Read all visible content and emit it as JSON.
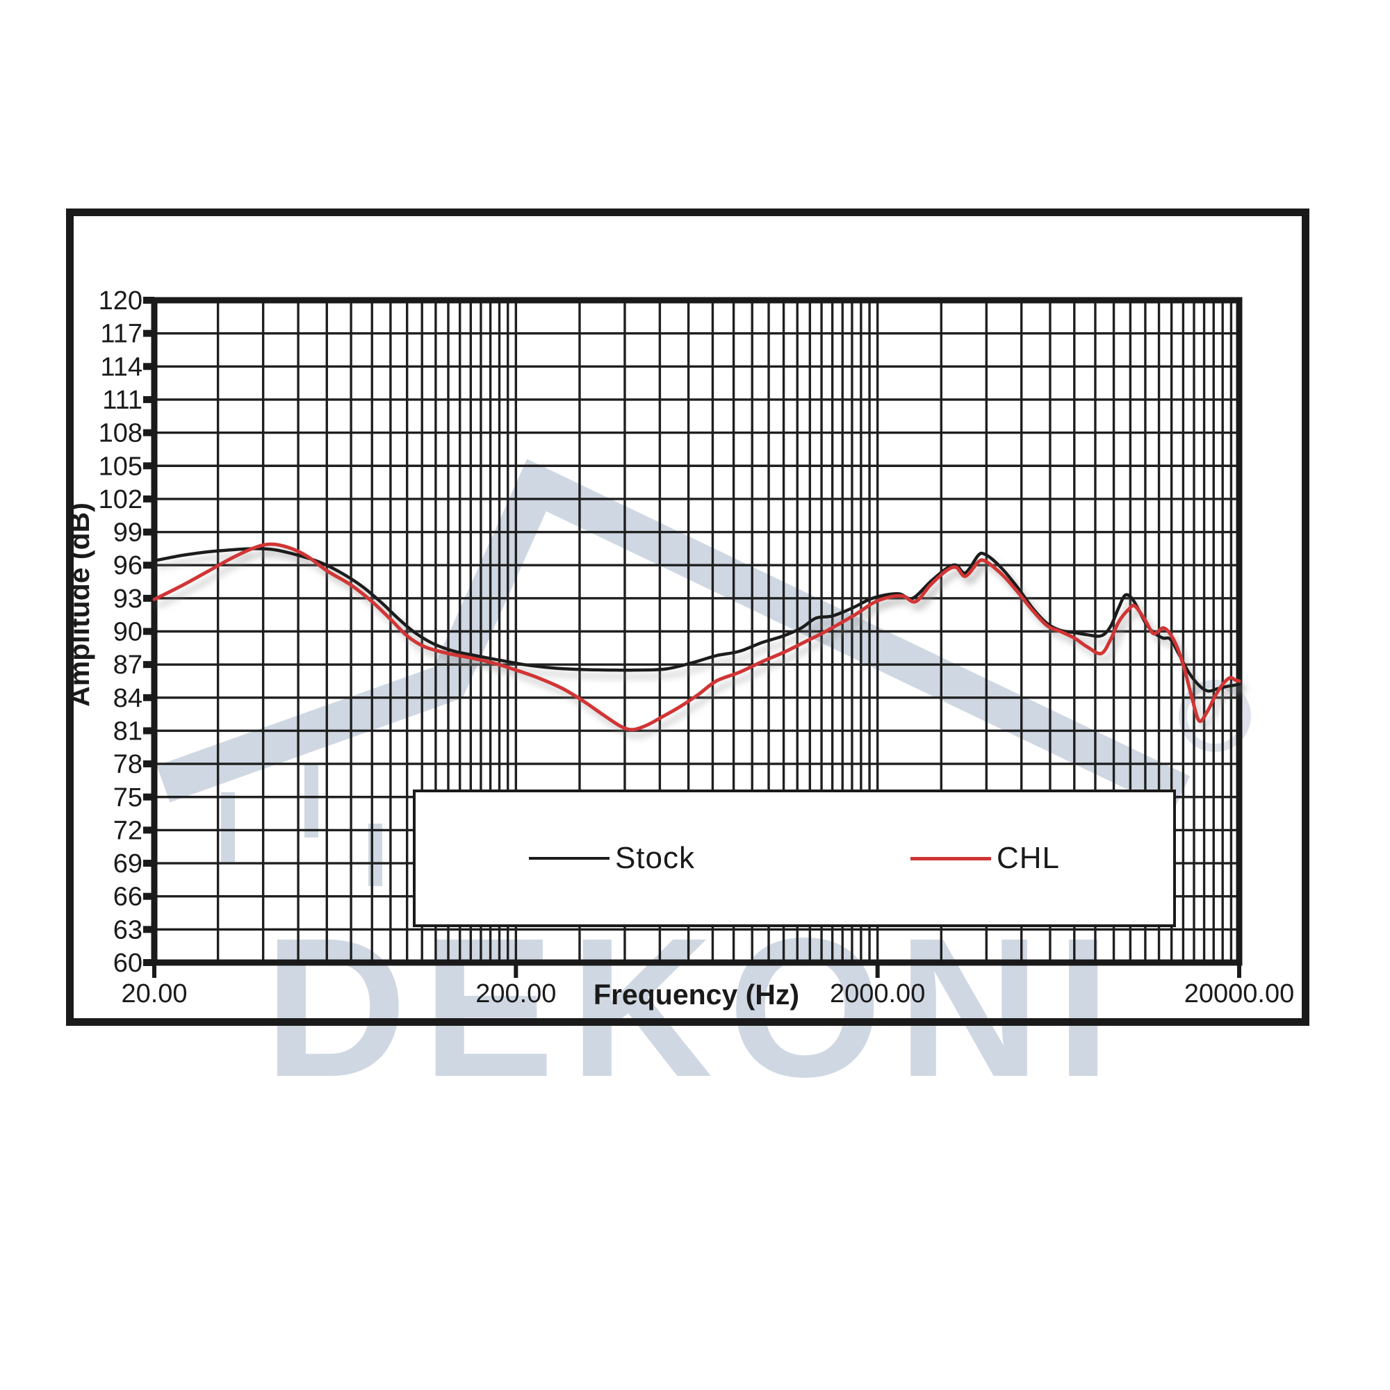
{
  "watermark": {
    "text": "DEKONI",
    "color": "#cfd7e2"
  },
  "colors": {
    "grid": "#1f1f1f",
    "frame": "#1a1a1a",
    "stock": "#1b1b1b",
    "chl": "#d13434",
    "watermark": "#cfd7e2"
  },
  "legend": {
    "items": [
      {
        "label": "Stock",
        "color": "#1b1b1b",
        "thickness": 4
      },
      {
        "label": "CHL",
        "color": "#d13434",
        "thickness": 5
      }
    ]
  },
  "chart_data": {
    "type": "line",
    "title": "",
    "xlabel": "Frequency (Hz)",
    "ylabel": "Amplitude (dB)",
    "x_scale": "log",
    "xlim": [
      20,
      20000
    ],
    "ylim": [
      60,
      120
    ],
    "y_step": 3,
    "grid": "on",
    "legend_position": "bottom-center-box",
    "x_ticks": [
      {
        "value": 20,
        "label": "20.00"
      },
      {
        "value": 200,
        "label": "200.00"
      },
      {
        "value": 2000,
        "label": "2000.00"
      },
      {
        "value": 20000,
        "label": "20000.00"
      }
    ],
    "y_ticks": [
      120,
      117,
      114,
      111,
      108,
      105,
      102,
      99,
      96,
      93,
      90,
      87,
      84,
      81,
      78,
      75,
      72,
      69,
      66,
      63,
      60
    ],
    "series": [
      {
        "name": "Stock",
        "points": [
          [
            20,
            96.4
          ],
          [
            24,
            96.9
          ],
          [
            28,
            97.2
          ],
          [
            33,
            97.4
          ],
          [
            38,
            97.5
          ],
          [
            43,
            97.4
          ],
          [
            50,
            96.9
          ],
          [
            57,
            96.3
          ],
          [
            65,
            95.4
          ],
          [
            75,
            94.1
          ],
          [
            85,
            92.6
          ],
          [
            95,
            91.1
          ],
          [
            105,
            89.9
          ],
          [
            118,
            88.9
          ],
          [
            135,
            88.2
          ],
          [
            155,
            87.8
          ],
          [
            180,
            87.4
          ],
          [
            210,
            87.0
          ],
          [
            250,
            86.7
          ],
          [
            300,
            86.55
          ],
          [
            360,
            86.5
          ],
          [
            430,
            86.5
          ],
          [
            520,
            86.6
          ],
          [
            620,
            87.2
          ],
          [
            716,
            87.8
          ],
          [
            830,
            88.2
          ],
          [
            960,
            89.0
          ],
          [
            1100,
            89.6
          ],
          [
            1230,
            90.3
          ],
          [
            1350,
            91.2
          ],
          [
            1500,
            91.4
          ],
          [
            1700,
            92.1
          ],
          [
            1900,
            92.9
          ],
          [
            2100,
            93.3
          ],
          [
            2300,
            93.4
          ],
          [
            2500,
            93.0
          ],
          [
            2800,
            94.5
          ],
          [
            3100,
            95.7
          ],
          [
            3300,
            96.0
          ],
          [
            3500,
            95.3
          ],
          [
            3800,
            96.9
          ],
          [
            3950,
            97.0
          ],
          [
            4200,
            96.4
          ],
          [
            4500,
            95.4
          ],
          [
            4900,
            93.9
          ],
          [
            5400,
            92.0
          ],
          [
            5900,
            90.7
          ],
          [
            6400,
            90.1
          ],
          [
            7000,
            89.9
          ],
          [
            7600,
            89.7
          ],
          [
            8300,
            89.6
          ],
          [
            8800,
            90.4
          ],
          [
            9300,
            92.2
          ],
          [
            9700,
            93.3
          ],
          [
            10200,
            92.8
          ],
          [
            11000,
            90.8
          ],
          [
            11600,
            89.9
          ],
          [
            12300,
            89.4
          ],
          [
            12900,
            89.3
          ],
          [
            13600,
            88.0
          ],
          [
            14500,
            86.3
          ],
          [
            15500,
            85.1
          ],
          [
            16400,
            84.6
          ],
          [
            17400,
            84.8
          ],
          [
            18400,
            85.0
          ],
          [
            19200,
            85.1
          ],
          [
            20000,
            85.2
          ]
        ]
      },
      {
        "name": "CHL",
        "points": [
          [
            20,
            92.9
          ],
          [
            24,
            94.2
          ],
          [
            28,
            95.4
          ],
          [
            33,
            96.7
          ],
          [
            38,
            97.6
          ],
          [
            42,
            97.9
          ],
          [
            47,
            97.6
          ],
          [
            53,
            96.8
          ],
          [
            60,
            95.5
          ],
          [
            70,
            94.2
          ],
          [
            80,
            92.7
          ],
          [
            90,
            91.1
          ],
          [
            100,
            89.6
          ],
          [
            112,
            88.6
          ],
          [
            130,
            88.0
          ],
          [
            150,
            87.6
          ],
          [
            175,
            87.1
          ],
          [
            200,
            86.5
          ],
          [
            230,
            85.8
          ],
          [
            270,
            84.8
          ],
          [
            310,
            83.6
          ],
          [
            350,
            82.4
          ],
          [
            390,
            81.4
          ],
          [
            420,
            81.1
          ],
          [
            460,
            81.5
          ],
          [
            510,
            82.3
          ],
          [
            570,
            83.2
          ],
          [
            640,
            84.3
          ],
          [
            716,
            85.5
          ],
          [
            830,
            86.3
          ],
          [
            950,
            87.2
          ],
          [
            1100,
            88.1
          ],
          [
            1250,
            89.0
          ],
          [
            1400,
            89.8
          ],
          [
            1550,
            90.6
          ],
          [
            1750,
            91.6
          ],
          [
            1950,
            92.6
          ],
          [
            2150,
            93.1
          ],
          [
            2350,
            93.2
          ],
          [
            2550,
            92.7
          ],
          [
            2800,
            94.2
          ],
          [
            3100,
            95.5
          ],
          [
            3300,
            95.8
          ],
          [
            3500,
            95.0
          ],
          [
            3800,
            96.3
          ],
          [
            3950,
            96.4
          ],
          [
            4200,
            95.8
          ],
          [
            4500,
            94.9
          ],
          [
            4900,
            93.5
          ],
          [
            5400,
            91.8
          ],
          [
            5900,
            90.5
          ],
          [
            6400,
            90.0
          ],
          [
            7000,
            89.4
          ],
          [
            7600,
            88.6
          ],
          [
            8300,
            88.0
          ],
          [
            8800,
            89.2
          ],
          [
            9300,
            90.9
          ],
          [
            9900,
            92.0
          ],
          [
            10300,
            92.3
          ],
          [
            11000,
            91.0
          ],
          [
            11600,
            89.8
          ],
          [
            12400,
            90.3
          ],
          [
            13200,
            89.2
          ],
          [
            14000,
            87.0
          ],
          [
            14800,
            84.0
          ],
          [
            15500,
            81.9
          ],
          [
            16300,
            82.7
          ],
          [
            17200,
            84.2
          ],
          [
            18100,
            85.3
          ],
          [
            18900,
            85.8
          ],
          [
            19500,
            85.6
          ],
          [
            20000,
            85.5
          ]
        ]
      }
    ]
  }
}
